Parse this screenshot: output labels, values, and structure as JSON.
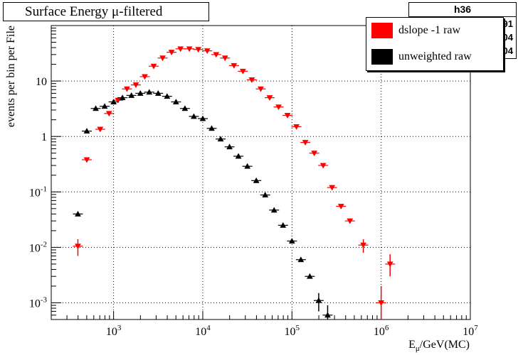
{
  "chart_data": {
    "type": "scatter",
    "title": "Surface Energy μ-filtered",
    "xlabel": "E_μ/GeV(MC)",
    "ylabel": "events per bin per File",
    "x_scale": "log",
    "y_scale": "log",
    "xlim": [
      200,
      10000000
    ],
    "ylim": [
      0.0005,
      100
    ],
    "grid": true,
    "legend_position": "top-right",
    "x_ticks": [
      {
        "value": 1000,
        "base": "10",
        "exp": "3"
      },
      {
        "value": 10000,
        "base": "10",
        "exp": "4"
      },
      {
        "value": 100000,
        "base": "10",
        "exp": "5"
      },
      {
        "value": 1000000,
        "base": "10",
        "exp": "6"
      },
      {
        "value": 10000000,
        "base": "10",
        "exp": "7"
      }
    ],
    "y_ticks": [
      {
        "value": 0.001,
        "base": "10",
        "exp": "-3"
      },
      {
        "value": 0.01,
        "base": "10",
        "exp": "-2"
      },
      {
        "value": 0.1,
        "base": "10",
        "exp": "-1"
      },
      {
        "value": 1,
        "base": "1",
        "exp": ""
      },
      {
        "value": 10,
        "base": "10",
        "exp": ""
      }
    ],
    "stats_box": {
      "name": "h36",
      "rows": [
        "91",
        "04",
        "04"
      ]
    },
    "series": [
      {
        "name": "dslope -1 raw",
        "color": "#ff0000",
        "marker": "triangle-down",
        "points": [
          {
            "x": 398,
            "y": 0.0105,
            "lo": 0.007,
            "hi": 0.014
          },
          {
            "x": 501,
            "y": 0.38
          },
          {
            "x": 708,
            "y": 1.35
          },
          {
            "x": 891,
            "y": 2.6
          },
          {
            "x": 1122,
            "y": 4.5
          },
          {
            "x": 1413,
            "y": 7.2
          },
          {
            "x": 1778,
            "y": 8.5
          },
          {
            "x": 2239,
            "y": 12.0
          },
          {
            "x": 2818,
            "y": 18.5
          },
          {
            "x": 3548,
            "y": 26.0
          },
          {
            "x": 4467,
            "y": 33.0
          },
          {
            "x": 5623,
            "y": 38.0
          },
          {
            "x": 7079,
            "y": 38.0
          },
          {
            "x": 8913,
            "y": 37.0
          },
          {
            "x": 11220,
            "y": 35.0
          },
          {
            "x": 14125,
            "y": 30.0
          },
          {
            "x": 17783,
            "y": 26.0
          },
          {
            "x": 22387,
            "y": 19.0
          },
          {
            "x": 28184,
            "y": 15.0
          },
          {
            "x": 35481,
            "y": 10.5
          },
          {
            "x": 44668,
            "y": 7.2
          },
          {
            "x": 56234,
            "y": 5.0
          },
          {
            "x": 70795,
            "y": 3.4
          },
          {
            "x": 89125,
            "y": 2.4
          },
          {
            "x": 112202,
            "y": 1.5
          },
          {
            "x": 141254,
            "y": 0.78
          },
          {
            "x": 177828,
            "y": 0.5
          },
          {
            "x": 223872,
            "y": 0.3
          },
          {
            "x": 281838,
            "y": 0.12
          },
          {
            "x": 354813,
            "y": 0.055
          },
          {
            "x": 446684,
            "y": 0.03
          },
          {
            "x": 630957,
            "y": 0.011,
            "lo": 0.008,
            "hi": 0.014
          },
          {
            "x": 1000000,
            "y": 0.001,
            "lo": 0.0004,
            "hi": 0.002
          },
          {
            "x": 1258925,
            "y": 0.005,
            "lo": 0.003,
            "hi": 0.0075
          }
        ]
      },
      {
        "name": "unweighted raw",
        "color": "#000000",
        "marker": "triangle-up",
        "points": [
          {
            "x": 398,
            "y": 0.04
          },
          {
            "x": 501,
            "y": 1.25
          },
          {
            "x": 631,
            "y": 3.2
          },
          {
            "x": 794,
            "y": 3.5
          },
          {
            "x": 1000,
            "y": 4.2
          },
          {
            "x": 1259,
            "y": 5.0
          },
          {
            "x": 1585,
            "y": 5.5
          },
          {
            "x": 1995,
            "y": 6.0
          },
          {
            "x": 2512,
            "y": 6.3
          },
          {
            "x": 3162,
            "y": 6.0
          },
          {
            "x": 3981,
            "y": 5.3
          },
          {
            "x": 5012,
            "y": 4.2
          },
          {
            "x": 6310,
            "y": 3.2
          },
          {
            "x": 7943,
            "y": 2.3
          },
          {
            "x": 10000,
            "y": 2.1
          },
          {
            "x": 12589,
            "y": 1.4
          },
          {
            "x": 15849,
            "y": 0.9
          },
          {
            "x": 19953,
            "y": 0.65
          },
          {
            "x": 25119,
            "y": 0.44
          },
          {
            "x": 31623,
            "y": 0.29
          },
          {
            "x": 39811,
            "y": 0.16
          },
          {
            "x": 50119,
            "y": 0.088
          },
          {
            "x": 63096,
            "y": 0.047
          },
          {
            "x": 79433,
            "y": 0.025
          },
          {
            "x": 100000,
            "y": 0.013
          },
          {
            "x": 125893,
            "y": 0.006
          },
          {
            "x": 158489,
            "y": 0.003
          },
          {
            "x": 199526,
            "y": 0.0011,
            "lo": 0.0007,
            "hi": 0.0015
          },
          {
            "x": 251189,
            "y": 0.0006,
            "lo": 0.0004,
            "hi": 0.0009
          }
        ]
      }
    ]
  }
}
